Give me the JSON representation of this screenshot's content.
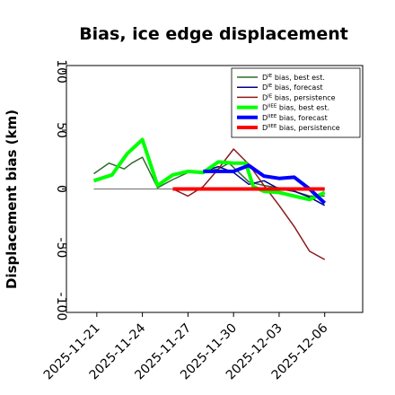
{
  "chart_data": {
    "type": "line",
    "title": "Bias, ice edge displacement",
    "xlabel": "",
    "ylabel": "Displacement bias (km)",
    "ylim": [
      -105,
      105
    ],
    "yticks": [
      100,
      50,
      0,
      -50,
      -100
    ],
    "xtick_labels": [
      "2025-11-21",
      "2025-11-24",
      "2025-11-27",
      "2025-11-30",
      "2025-12-03",
      "2025-12-06"
    ],
    "xtick_days": [
      2,
      5,
      8,
      11,
      14,
      17
    ],
    "xtick_colors": [
      "#000000",
      "#000000",
      "#228B22",
      "#000000",
      "#000000",
      "#000000"
    ],
    "xlim_days": [
      0,
      19.5
    ],
    "zero_line": {
      "x_start": 1.8,
      "x_end": 17.0,
      "color": "#808080"
    },
    "legend": {
      "position": "top-right"
    },
    "series": [
      {
        "name_sup": "IE",
        "name_rest": " bias, best est.",
        "color": "#2e6b2e",
        "width": 1.5,
        "x": [
          1.8,
          2.8,
          3.8,
          4.3,
          5.0,
          6.0,
          7.0,
          8.0,
          9.0,
          10.0,
          10.7,
          12.0,
          13.0,
          14.0,
          15.0,
          16.0,
          17.0
        ],
        "y": [
          13,
          22,
          17,
          22,
          27,
          1,
          8,
          14,
          15,
          17,
          22,
          6,
          3,
          1,
          -2,
          -6,
          -6
        ]
      },
      {
        "name_sup": "IE",
        "name_rest": " bias, forecast",
        "color": "#00008b",
        "width": 1.5,
        "x": [
          9.0,
          10.0,
          11.0,
          12.0,
          13.0,
          14.0,
          15.0,
          16.0,
          17.0
        ],
        "y": [
          15,
          19,
          14,
          4,
          7,
          0,
          -2,
          -7,
          -14
        ]
      },
      {
        "name_sup": "IE",
        "name_rest": " bias, persistence",
        "color": "#8b1a1a",
        "width": 1.5,
        "x": [
          7.0,
          8.0,
          9.0,
          10.0,
          11.0,
          12.0,
          13.0,
          14.0,
          15.0,
          16.0,
          17.0
        ],
        "y": [
          0,
          -6,
          2,
          17,
          34,
          21,
          3,
          -14,
          -32,
          -53,
          -60
        ]
      },
      {
        "name_sup": "IIEE",
        "name_rest": " bias, best est.",
        "color": "#00ff00",
        "width": 4,
        "x": [
          1.8,
          3.0,
          4.0,
          5.0,
          6.0,
          7.0,
          8.0,
          9.0,
          10.0,
          11.0,
          11.8,
          12.3,
          13.0,
          14.0,
          15.0,
          16.0,
          17.0
        ],
        "y": [
          7,
          12,
          30,
          42,
          3,
          12,
          15,
          14,
          23,
          22,
          22,
          2,
          -2,
          -3,
          -6,
          -9,
          -3
        ]
      },
      {
        "name_sup": "IIEE",
        "name_rest": " bias, forecast",
        "color": "#0000ff",
        "width": 4,
        "x": [
          9.0,
          10.0,
          11.0,
          12.0,
          13.0,
          14.0,
          15.0,
          16.0,
          17.0
        ],
        "y": [
          15,
          15,
          15,
          20,
          11,
          9,
          10,
          0,
          -12
        ]
      },
      {
        "name_sup": "IIEE",
        "name_rest": " bias, persistence",
        "color": "#ff0000",
        "width": 4,
        "x": [
          7.0,
          8.0,
          9.0,
          10.0,
          11.0,
          12.0,
          13.0,
          14.0,
          15.0,
          16.0,
          17.0
        ],
        "y": [
          0,
          0,
          0,
          0,
          0,
          0,
          0,
          0,
          0,
          0,
          0
        ]
      }
    ]
  }
}
